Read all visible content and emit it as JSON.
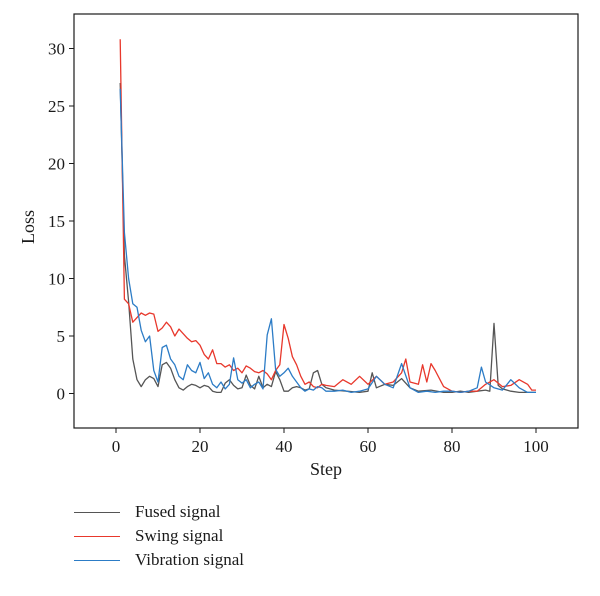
{
  "chart_data": {
    "type": "line",
    "title": "",
    "xlabel": "Step",
    "ylabel": "Loss",
    "xlim": [
      -10,
      110
    ],
    "ylim": [
      -3,
      33
    ],
    "xticks": [
      0,
      20,
      40,
      60,
      80,
      100
    ],
    "yticks": [
      0,
      5,
      10,
      15,
      20,
      25,
      30
    ],
    "grid": false,
    "legend_position": "bottom-left",
    "series": [
      {
        "name": "Fused signal",
        "color": "#555555",
        "x": [
          1,
          2,
          3,
          4,
          5,
          6,
          7,
          8,
          9,
          10,
          11,
          12,
          13,
          14,
          15,
          16,
          17,
          18,
          19,
          20,
          21,
          22,
          23,
          24,
          25,
          26,
          27,
          28,
          29,
          30,
          31,
          32,
          33,
          34,
          35,
          36,
          37,
          38,
          39,
          40,
          41,
          42,
          43,
          44,
          45,
          46,
          47,
          48,
          49,
          50,
          52,
          55,
          58,
          60,
          61,
          62,
          64,
          66,
          68,
          70,
          72,
          75,
          78,
          80,
          82,
          84,
          86,
          88,
          89,
          90,
          91,
          92,
          94,
          96,
          98,
          100
        ],
        "y": [
          27,
          12,
          8,
          3,
          1.2,
          0.6,
          1.2,
          1.5,
          1.3,
          0.6,
          2.5,
          2.7,
          2.2,
          1.2,
          0.5,
          0.3,
          0.6,
          0.8,
          0.7,
          0.5,
          0.7,
          0.6,
          0.2,
          0.1,
          0.1,
          0.9,
          1.2,
          0.7,
          0.4,
          0.5,
          1.6,
          0.7,
          0.4,
          1.5,
          0.5,
          0.8,
          0.6,
          1.9,
          1.2,
          0.2,
          0.2,
          0.5,
          0.6,
          0.5,
          0.3,
          0.4,
          1.8,
          2,
          0.8,
          0.5,
          0.3,
          0.2,
          0.1,
          0.2,
          1.8,
          0.5,
          0.8,
          0.7,
          1.3,
          0.5,
          0.2,
          0.3,
          0.1,
          0.1,
          0.2,
          0.1,
          0.2,
          0.3,
          0.2,
          6.1,
          0.7,
          0.4,
          0.2,
          0.1,
          0.1,
          0.1
        ]
      },
      {
        "name": "Swing signal",
        "color": "#e8382c",
        "x": [
          1,
          2,
          3,
          4,
          5,
          6,
          7,
          8,
          9,
          10,
          11,
          12,
          13,
          14,
          15,
          16,
          17,
          18,
          19,
          20,
          21,
          22,
          23,
          24,
          25,
          26,
          27,
          28,
          29,
          30,
          31,
          32,
          33,
          34,
          35,
          36,
          37,
          38,
          39,
          40,
          41,
          42,
          43,
          44,
          45,
          46,
          47,
          48,
          49,
          50,
          52,
          54,
          56,
          58,
          60,
          62,
          64,
          66,
          68,
          69,
          70,
          72,
          73,
          74,
          75,
          76,
          78,
          80,
          82,
          84,
          86,
          88,
          90,
          92,
          94,
          96,
          98,
          99,
          100
        ],
        "y": [
          30.8,
          8.2,
          7.8,
          6.2,
          6.6,
          7,
          6.8,
          7,
          6.9,
          5.4,
          5.7,
          6.2,
          5.8,
          5,
          5.6,
          5.2,
          4.8,
          4.5,
          4.6,
          4.2,
          3.4,
          3,
          3.8,
          2.6,
          2.6,
          2.3,
          2.5,
          2,
          2.2,
          1.8,
          2.4,
          2.2,
          1.9,
          1.8,
          2,
          1.7,
          1.2,
          2,
          2.5,
          6,
          4.8,
          3.2,
          2.5,
          1.5,
          0.8,
          1,
          0.6,
          0.5,
          0.8,
          0.7,
          0.6,
          1.2,
          0.8,
          1.5,
          0.8,
          1.5,
          0.8,
          1,
          1.8,
          3,
          1,
          0.8,
          2.5,
          1,
          2.6,
          2,
          0.6,
          0.2,
          0.1,
          0.2,
          0.2,
          0.8,
          1.2,
          0.6,
          0.7,
          1.2,
          0.8,
          0.3,
          0.3
        ]
      },
      {
        "name": "Vibration signal",
        "color": "#2c7cc6",
        "x": [
          1,
          2,
          3,
          4,
          5,
          6,
          7,
          8,
          9,
          10,
          11,
          12,
          13,
          14,
          15,
          16,
          17,
          18,
          19,
          20,
          21,
          22,
          23,
          24,
          25,
          26,
          27,
          28,
          29,
          30,
          31,
          32,
          33,
          34,
          35,
          36,
          37,
          38,
          39,
          40,
          41,
          42,
          43,
          44,
          45,
          46,
          47,
          48,
          49,
          50,
          52,
          54,
          56,
          58,
          60,
          62,
          64,
          66,
          68,
          70,
          72,
          74,
          76,
          78,
          80,
          82,
          84,
          86,
          87,
          88,
          90,
          92,
          94,
          96,
          98,
          100
        ],
        "y": [
          26.5,
          14,
          10,
          7.8,
          7.5,
          5.5,
          4.5,
          5,
          2,
          1,
          4,
          4.2,
          3,
          2.5,
          1.5,
          1.2,
          2.5,
          2,
          1.8,
          2.7,
          1.3,
          1.8,
          0.8,
          0.5,
          1,
          0.4,
          0.8,
          3.1,
          1.2,
          0.9,
          1.2,
          0.5,
          0.8,
          1,
          0.4,
          5.1,
          6.5,
          2.1,
          1.5,
          1.8,
          2.2,
          1.5,
          1,
          0.5,
          0.2,
          0.4,
          0.3,
          0.6,
          0.5,
          0.2,
          0.2,
          0.3,
          0.1,
          0.2,
          0.4,
          1.5,
          0.8,
          0.5,
          2.6,
          0.5,
          0.1,
          0.2,
          0.1,
          0.2,
          0.2,
          0.1,
          0.2,
          0.5,
          2.3,
          1,
          0.5,
          0.3,
          1.2,
          0.5,
          0.1,
          0.1
        ]
      }
    ]
  }
}
